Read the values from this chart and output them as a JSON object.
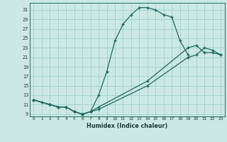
{
  "xlabel": "Humidex (Indice chaleur)",
  "bg_color": "#cce8e5",
  "grid_color": "#99ccca",
  "line_color": "#1a6b5e",
  "xlim": [
    -0.5,
    23.5
  ],
  "ylim": [
    8.5,
    32.5
  ],
  "xticks": [
    0,
    1,
    2,
    3,
    4,
    5,
    6,
    7,
    8,
    9,
    10,
    11,
    12,
    13,
    14,
    15,
    16,
    17,
    18,
    19,
    20,
    21,
    22,
    23
  ],
  "yticks": [
    9,
    11,
    13,
    15,
    17,
    19,
    21,
    23,
    25,
    27,
    29,
    31
  ],
  "curve1_x": [
    0,
    1,
    2,
    3,
    4,
    5,
    6,
    7,
    8,
    9,
    10,
    11,
    12,
    13,
    14,
    15,
    16,
    17,
    18,
    19
  ],
  "curve1_y": [
    12,
    11.5,
    11,
    10.5,
    10.5,
    9.5,
    9,
    9.5,
    13,
    18,
    24.5,
    28,
    30,
    31.5,
    31.5,
    31,
    30,
    29.5,
    24.5,
    21.5
  ],
  "curve2_x": [
    0,
    2,
    3,
    4,
    5,
    6,
    7,
    8,
    14,
    19,
    20,
    21,
    22,
    23
  ],
  "curve2_y": [
    12,
    11,
    10.5,
    10.5,
    9.5,
    9,
    9.5,
    10,
    15,
    21,
    21.5,
    23,
    22.5,
    21.5
  ],
  "curve3_x": [
    0,
    2,
    3,
    4,
    5,
    6,
    7,
    8,
    14,
    19,
    20,
    21,
    22,
    23
  ],
  "curve3_y": [
    12,
    11,
    10.5,
    10.5,
    9.5,
    9,
    9.5,
    10.5,
    16,
    23,
    23.5,
    22,
    22,
    21.5
  ]
}
